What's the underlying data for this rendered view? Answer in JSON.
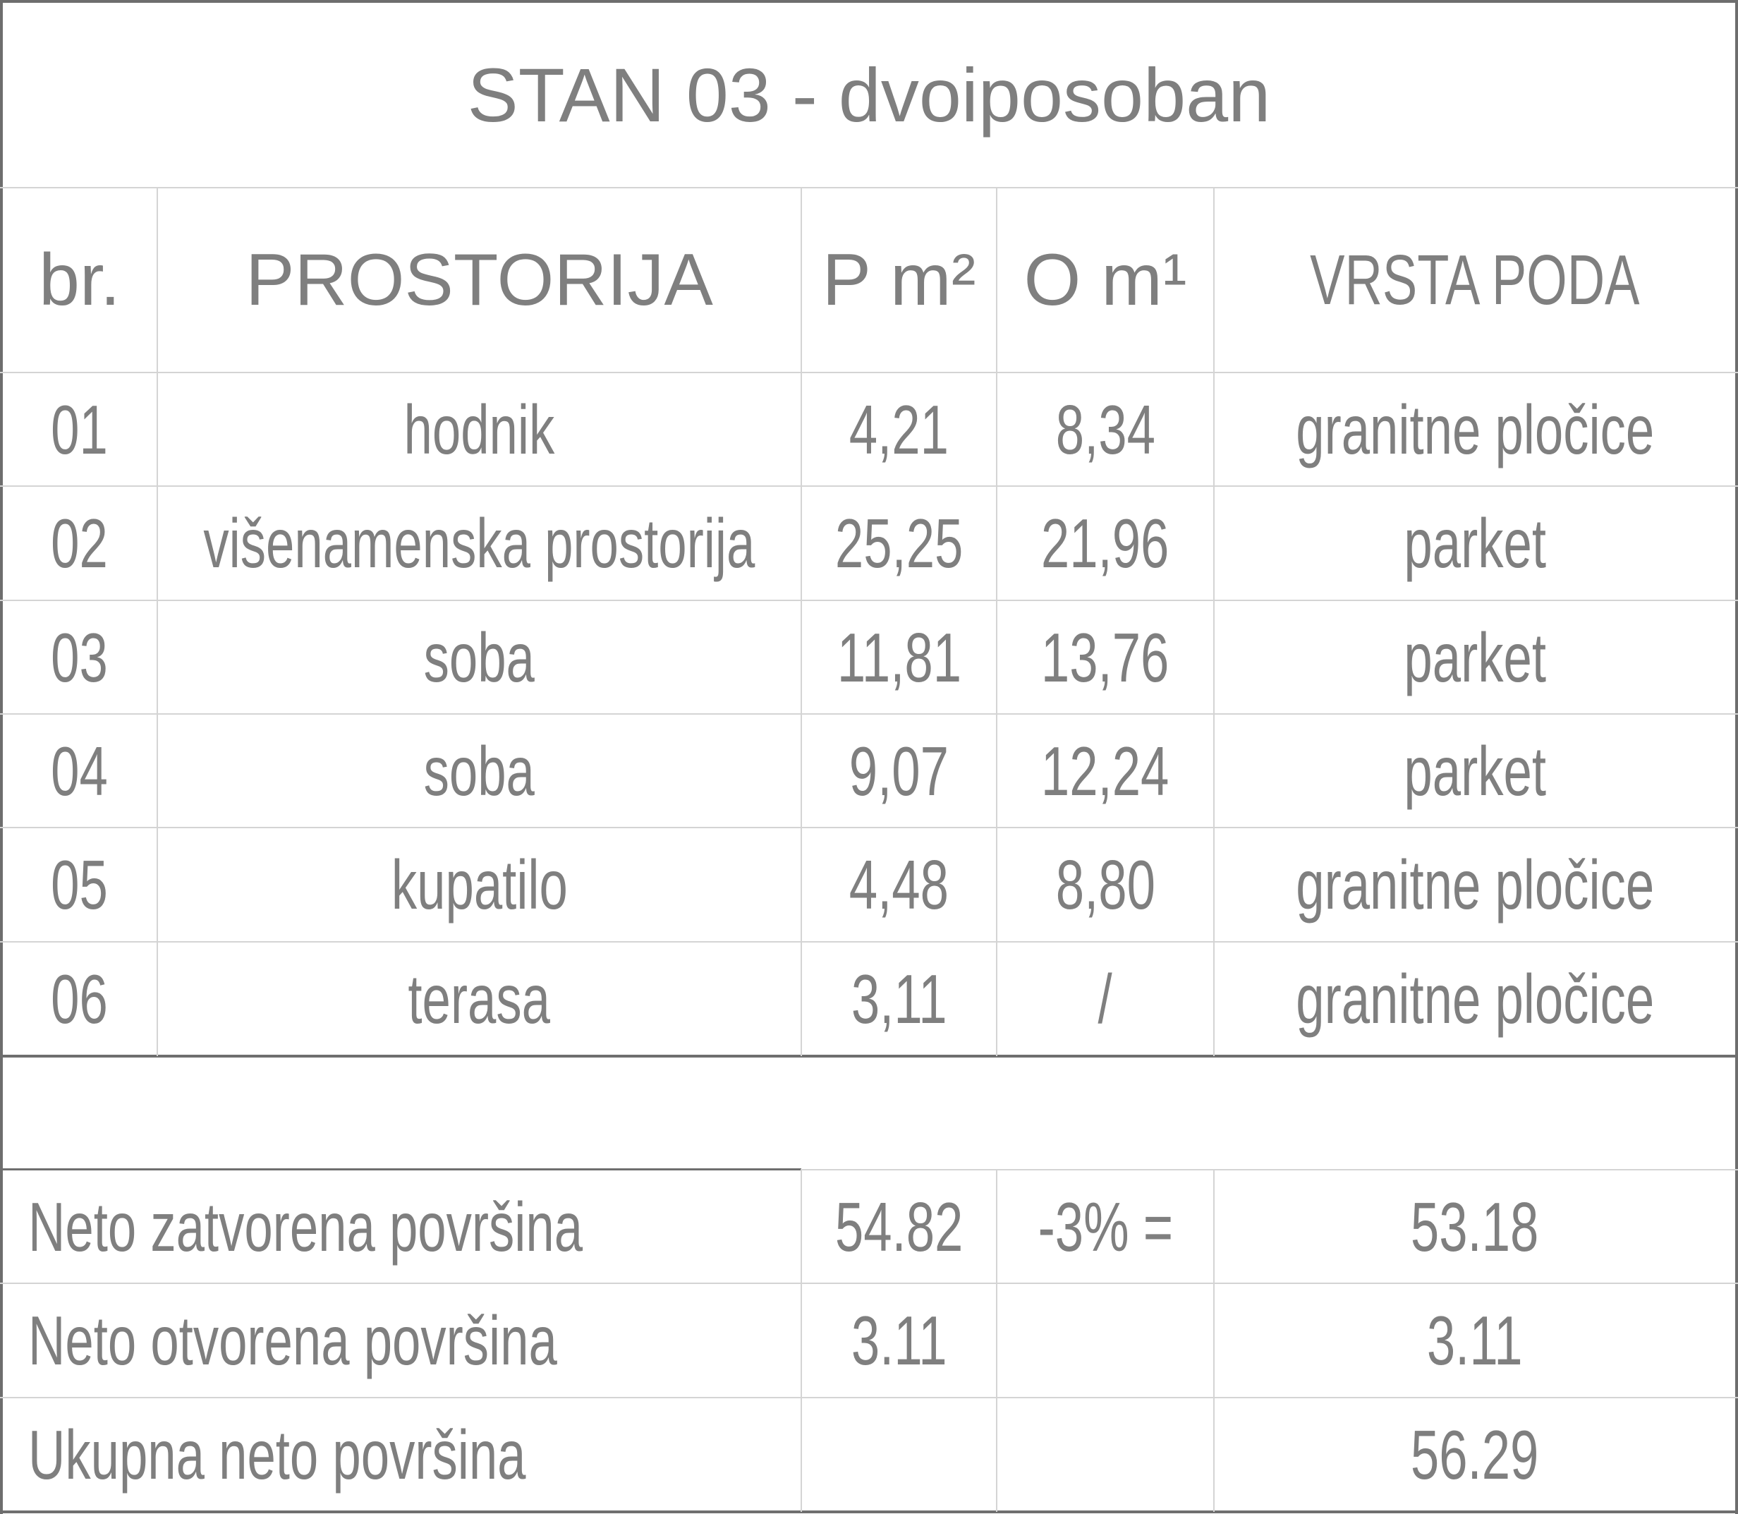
{
  "title": "STAN 03 - dvoiposoban",
  "columns": {
    "br": "br.",
    "room": "PROSTORIJA",
    "area": "P m²",
    "perimeter": "O m¹",
    "floor": "VRSTA PODA"
  },
  "rows": [
    {
      "no": "01",
      "room": "hodnik",
      "area": "4,21",
      "perimeter": "8,34",
      "floor": "granitne pločice"
    },
    {
      "no": "02",
      "room": "višenamenska prostorija",
      "area": "25,25",
      "perimeter": "21,96",
      "floor": "parket"
    },
    {
      "no": "03",
      "room": "soba",
      "area": "11,81",
      "perimeter": "13,76",
      "floor": "parket"
    },
    {
      "no": "04",
      "room": "soba",
      "area": "9,07",
      "perimeter": "12,24",
      "floor": "parket"
    },
    {
      "no": "05",
      "room": "kupatilo",
      "area": "4,48",
      "perimeter": "8,80",
      "floor": "granitne pločice"
    },
    {
      "no": "06",
      "room": "terasa",
      "area": "3,11",
      "perimeter": "/",
      "floor": "granitne pločice"
    }
  ],
  "summary": [
    {
      "label": "Neto zatvorena površina",
      "area": "54.82",
      "adjust": "-3% =",
      "total": "53.18"
    },
    {
      "label": "Neto otvorena površina",
      "area": "3.11",
      "adjust": "",
      "total": "3.11"
    },
    {
      "label": "Ukupna neto površina",
      "area": "",
      "adjust": "",
      "total": "56.29"
    }
  ]
}
